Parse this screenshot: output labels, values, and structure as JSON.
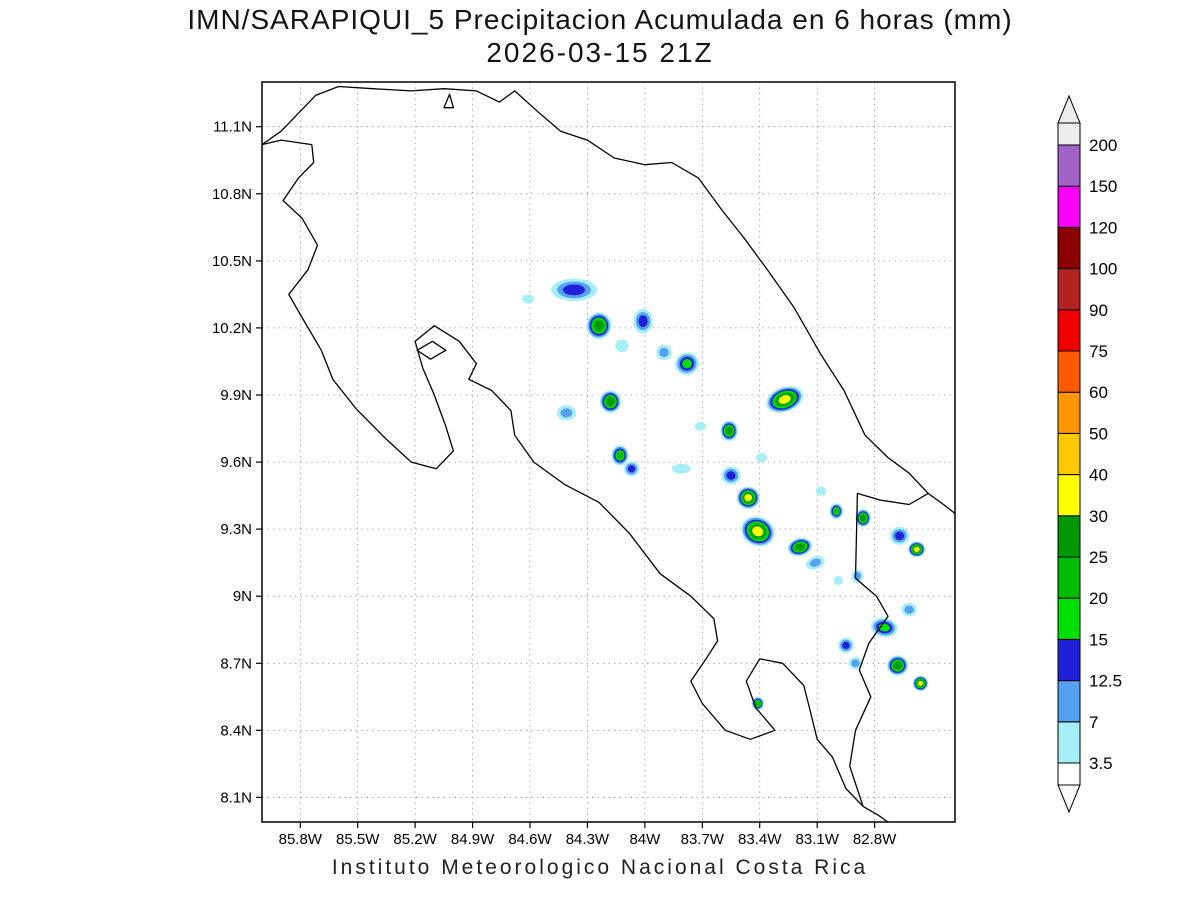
{
  "chart_data": {
    "type": "heatmap",
    "title": "IMN/SARAPIQUI_5 Precipitacion Acumulada en 6 horas (mm)",
    "subtitle": "2026-03-15 21Z",
    "footer": "Instituto Meteorologico Nacional Costa Rica",
    "units": "mm",
    "projection": "lonlat",
    "grid": true,
    "legend_position": "right",
    "lon_range": [
      -86.0,
      -82.38
    ],
    "lat_range": [
      7.99,
      11.3
    ],
    "x_ticks": [
      {
        "value": -85.8,
        "label": "85.8W"
      },
      {
        "value": -85.5,
        "label": "85.5W"
      },
      {
        "value": -85.2,
        "label": "85.2W"
      },
      {
        "value": -84.9,
        "label": "84.9W"
      },
      {
        "value": -84.6,
        "label": "84.6W"
      },
      {
        "value": -84.3,
        "label": "84.3W"
      },
      {
        "value": -84.0,
        "label": "84W"
      },
      {
        "value": -83.7,
        "label": "83.7W"
      },
      {
        "value": -83.4,
        "label": "83.4W"
      },
      {
        "value": -83.1,
        "label": "83.1W"
      },
      {
        "value": -82.8,
        "label": "82.8W"
      }
    ],
    "y_ticks": [
      {
        "value": 11.1,
        "label": "11.1N"
      },
      {
        "value": 10.8,
        "label": "10.8N"
      },
      {
        "value": 10.5,
        "label": "10.5N"
      },
      {
        "value": 10.2,
        "label": "10.2N"
      },
      {
        "value": 9.9,
        "label": "9.9N"
      },
      {
        "value": 9.6,
        "label": "9.6N"
      },
      {
        "value": 9.3,
        "label": "9.3N"
      },
      {
        "value": 9.0,
        "label": "9N"
      },
      {
        "value": 8.7,
        "label": "8.7N"
      },
      {
        "value": 8.4,
        "label": "8.4N"
      },
      {
        "value": 8.1,
        "label": "8.1N"
      }
    ],
    "colorbar": {
      "levels": [
        3.5,
        7,
        12.5,
        15,
        20,
        25,
        30,
        40,
        50,
        60,
        75,
        90,
        100,
        120,
        150,
        200
      ],
      "labels": [
        "3.5",
        "7",
        "12.5",
        "15",
        "20",
        "25",
        "30",
        "40",
        "50",
        "60",
        "75",
        "90",
        "100",
        "120",
        "150",
        "200"
      ],
      "band_colors": [
        "#a5eef5",
        "#55a0f0",
        "#2020d8",
        "#00e000",
        "#00bc00",
        "#009800",
        "#ffff00",
        "#ffc800",
        "#ff9800",
        "#ff5a00",
        "#f00000",
        "#b22222",
        "#8b0000",
        "#fa00fa",
        "#a064c8"
      ],
      "under_color": "#ffffff",
      "over_color": "#ededed"
    },
    "coastline": {
      "main": [
        [
          -86.0,
          11.02
        ],
        [
          -85.9,
          11.08
        ],
        [
          -85.81,
          11.16
        ],
        [
          -85.72,
          11.24
        ],
        [
          -85.6,
          11.28
        ],
        [
          -85.42,
          11.27
        ],
        [
          -85.22,
          11.26
        ],
        [
          -85.05,
          11.27
        ],
        [
          -84.88,
          11.26
        ],
        [
          -84.76,
          11.21
        ],
        [
          -84.68,
          11.26
        ],
        [
          -84.55,
          11.16
        ],
        [
          -84.44,
          11.08
        ],
        [
          -84.3,
          11.04
        ],
        [
          -84.16,
          10.96
        ],
        [
          -84.0,
          10.93
        ],
        [
          -83.86,
          10.94
        ],
        [
          -83.72,
          10.87
        ],
        [
          -83.6,
          10.73
        ],
        [
          -83.48,
          10.6
        ],
        [
          -83.36,
          10.46
        ],
        [
          -83.22,
          10.29
        ],
        [
          -83.08,
          10.08
        ],
        [
          -82.96,
          9.92
        ],
        [
          -82.85,
          9.72
        ],
        [
          -82.73,
          9.62
        ],
        [
          -82.62,
          9.55
        ],
        [
          -82.52,
          9.46
        ],
        [
          -82.62,
          9.41
        ],
        [
          -82.77,
          9.43
        ],
        [
          -82.89,
          9.46
        ],
        [
          -82.9,
          9.08
        ],
        [
          -82.79,
          9.0
        ],
        [
          -82.73,
          8.91
        ],
        [
          -82.83,
          8.79
        ],
        [
          -82.88,
          8.67
        ],
        [
          -82.82,
          8.55
        ],
        [
          -82.9,
          8.4
        ],
        [
          -82.93,
          8.24
        ],
        [
          -82.86,
          8.06
        ],
        [
          -82.95,
          8.14
        ],
        [
          -83.02,
          8.28
        ],
        [
          -83.1,
          8.36
        ],
        [
          -83.14,
          8.5
        ],
        [
          -83.17,
          8.6
        ],
        [
          -83.28,
          8.7
        ],
        [
          -83.4,
          8.72
        ],
        [
          -83.47,
          8.62
        ],
        [
          -83.42,
          8.5
        ],
        [
          -83.32,
          8.4
        ],
        [
          -83.45,
          8.36
        ],
        [
          -83.58,
          8.4
        ],
        [
          -83.7,
          8.52
        ],
        [
          -83.76,
          8.62
        ],
        [
          -83.68,
          8.72
        ],
        [
          -83.62,
          8.8
        ],
        [
          -83.64,
          8.9
        ],
        [
          -83.76,
          9.0
        ],
        [
          -83.92,
          9.1
        ],
        [
          -84.08,
          9.28
        ],
        [
          -84.24,
          9.42
        ],
        [
          -84.42,
          9.5
        ],
        [
          -84.58,
          9.6
        ],
        [
          -84.68,
          9.72
        ],
        [
          -84.7,
          9.83
        ],
        [
          -84.8,
          9.92
        ],
        [
          -84.92,
          9.97
        ],
        [
          -84.88,
          10.04
        ],
        [
          -84.97,
          10.14
        ],
        [
          -85.1,
          10.21
        ],
        [
          -85.2,
          10.14
        ],
        [
          -85.16,
          10.02
        ],
        [
          -85.1,
          9.9
        ],
        [
          -85.04,
          9.76
        ],
        [
          -85.0,
          9.65
        ],
        [
          -85.09,
          9.57
        ],
        [
          -85.22,
          9.6
        ],
        [
          -85.36,
          9.71
        ],
        [
          -85.51,
          9.84
        ],
        [
          -85.63,
          9.97
        ],
        [
          -85.69,
          10.1
        ],
        [
          -85.8,
          10.26
        ],
        [
          -85.86,
          10.35
        ],
        [
          -85.76,
          10.46
        ],
        [
          -85.71,
          10.57
        ],
        [
          -85.79,
          10.69
        ],
        [
          -85.89,
          10.77
        ],
        [
          -85.81,
          10.87
        ],
        [
          -85.73,
          10.94
        ],
        [
          -85.74,
          11.02
        ],
        [
          -85.9,
          11.04
        ],
        [
          -86.0,
          11.02
        ]
      ],
      "extras": [
        [
          [
            -82.52,
            9.46
          ],
          [
            -82.44,
            9.41
          ],
          [
            -82.38,
            9.37
          ]
        ],
        [
          [
            -82.86,
            8.06
          ],
          [
            -82.78,
            8.02
          ],
          [
            -82.73,
            7.99
          ]
        ]
      ],
      "islands": [
        [
          [
            -85.05,
            11.185
          ],
          [
            -85.0,
            11.185
          ],
          [
            -85.02,
            11.245
          ]
        ],
        [
          [
            -85.19,
            10.1
          ],
          [
            -85.11,
            10.14
          ],
          [
            -85.04,
            10.1
          ],
          [
            -85.12,
            10.06
          ]
        ]
      ]
    },
    "cells": [
      {
        "lon": -84.37,
        "lat": 10.37,
        "max_mm": 13,
        "rx": 0.12,
        "ry": 0.05,
        "rot": 0
      },
      {
        "lon": -84.24,
        "lat": 10.21,
        "max_mm": 27,
        "rx": 0.065,
        "ry": 0.06,
        "rot": 0
      },
      {
        "lon": -84.01,
        "lat": 10.23,
        "max_mm": 13,
        "rx": 0.05,
        "ry": 0.055,
        "rot": 0
      },
      {
        "lon": -84.12,
        "lat": 10.12,
        "max_mm": 5,
        "rx": 0.035,
        "ry": 0.028,
        "rot": 0
      },
      {
        "lon": -83.9,
        "lat": 10.09,
        "max_mm": 8,
        "rx": 0.04,
        "ry": 0.034,
        "rot": 0
      },
      {
        "lon": -83.78,
        "lat": 10.04,
        "max_mm": 16,
        "rx": 0.062,
        "ry": 0.05,
        "rot": -15
      },
      {
        "lon": -84.41,
        "lat": 9.82,
        "max_mm": 8,
        "rx": 0.05,
        "ry": 0.034,
        "rot": 0
      },
      {
        "lon": -84.18,
        "lat": 9.87,
        "max_mm": 27,
        "rx": 0.055,
        "ry": 0.05,
        "rot": 0
      },
      {
        "lon": -83.27,
        "lat": 9.88,
        "max_mm": 35,
        "rx": 0.1,
        "ry": 0.055,
        "rot": -20
      },
      {
        "lon": -83.56,
        "lat": 9.74,
        "max_mm": 27,
        "rx": 0.045,
        "ry": 0.045,
        "rot": 0
      },
      {
        "lon": -84.13,
        "lat": 9.63,
        "max_mm": 22,
        "rx": 0.045,
        "ry": 0.045,
        "rot": 0
      },
      {
        "lon": -84.07,
        "lat": 9.57,
        "max_mm": 13,
        "rx": 0.04,
        "ry": 0.034,
        "rot": 0
      },
      {
        "lon": -83.81,
        "lat": 9.57,
        "max_mm": 5,
        "rx": 0.05,
        "ry": 0.022,
        "rot": 0
      },
      {
        "lon": -83.55,
        "lat": 9.54,
        "max_mm": 13,
        "rx": 0.05,
        "ry": 0.04,
        "rot": 0
      },
      {
        "lon": -83.46,
        "lat": 9.44,
        "max_mm": 35,
        "rx": 0.06,
        "ry": 0.05,
        "rot": 0
      },
      {
        "lon": -83.41,
        "lat": 9.29,
        "max_mm": 35,
        "rx": 0.09,
        "ry": 0.065,
        "rot": 25
      },
      {
        "lon": -83.19,
        "lat": 9.22,
        "max_mm": 27,
        "rx": 0.065,
        "ry": 0.04,
        "rot": -15
      },
      {
        "lon": -83.11,
        "lat": 9.15,
        "max_mm": 8,
        "rx": 0.05,
        "ry": 0.028,
        "rot": -20
      },
      {
        "lon": -83.0,
        "lat": 9.38,
        "max_mm": 22,
        "rx": 0.035,
        "ry": 0.035,
        "rot": 0
      },
      {
        "lon": -82.86,
        "lat": 9.35,
        "max_mm": 27,
        "rx": 0.04,
        "ry": 0.04,
        "rot": 0
      },
      {
        "lon": -82.67,
        "lat": 9.27,
        "max_mm": 13,
        "rx": 0.05,
        "ry": 0.04,
        "rot": 0
      },
      {
        "lon": -82.58,
        "lat": 9.21,
        "max_mm": 35,
        "rx": 0.045,
        "ry": 0.035,
        "rot": 0
      },
      {
        "lon": -82.89,
        "lat": 9.09,
        "max_mm": 8,
        "rx": 0.03,
        "ry": 0.03,
        "rot": 0
      },
      {
        "lon": -82.75,
        "lat": 8.86,
        "max_mm": 16,
        "rx": 0.07,
        "ry": 0.042,
        "rot": 10
      },
      {
        "lon": -82.95,
        "lat": 8.78,
        "max_mm": 13,
        "rx": 0.04,
        "ry": 0.034,
        "rot": 0
      },
      {
        "lon": -82.9,
        "lat": 8.7,
        "max_mm": 8,
        "rx": 0.035,
        "ry": 0.028,
        "rot": 0
      },
      {
        "lon": -82.68,
        "lat": 8.69,
        "max_mm": 27,
        "rx": 0.055,
        "ry": 0.045,
        "rot": -10
      },
      {
        "lon": -82.56,
        "lat": 8.61,
        "max_mm": 35,
        "rx": 0.04,
        "ry": 0.034,
        "rot": 0
      },
      {
        "lon": -83.41,
        "lat": 8.52,
        "max_mm": 22,
        "rx": 0.033,
        "ry": 0.03,
        "rot": 0
      },
      {
        "lon": -84.61,
        "lat": 10.33,
        "max_mm": 5,
        "rx": 0.03,
        "ry": 0.02,
        "rot": 0
      },
      {
        "lon": -83.71,
        "lat": 9.76,
        "max_mm": 5,
        "rx": 0.028,
        "ry": 0.02,
        "rot": 0
      },
      {
        "lon": -83.39,
        "lat": 9.62,
        "max_mm": 5,
        "rx": 0.028,
        "ry": 0.02,
        "rot": 0
      },
      {
        "lon": -83.08,
        "lat": 9.47,
        "max_mm": 5,
        "rx": 0.028,
        "ry": 0.02,
        "rot": 0
      },
      {
        "lon": -82.99,
        "lat": 9.07,
        "max_mm": 5,
        "rx": 0.024,
        "ry": 0.02,
        "rot": 0
      },
      {
        "lon": -82.62,
        "lat": 8.94,
        "max_mm": 8,
        "rx": 0.04,
        "ry": 0.03,
        "rot": 0
      }
    ]
  }
}
